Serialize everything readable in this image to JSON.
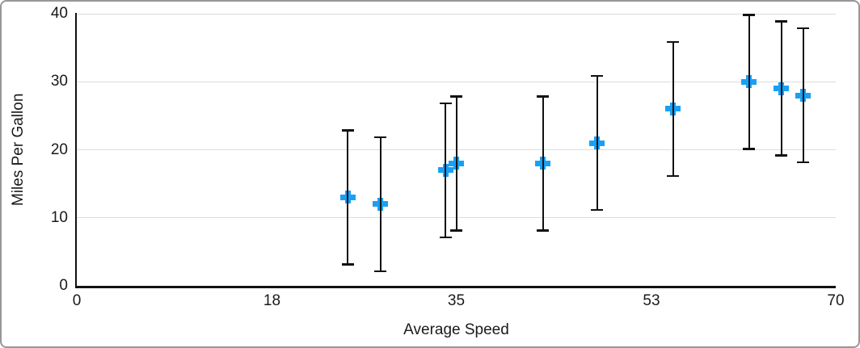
{
  "chart_data": {
    "type": "scatter",
    "title": "",
    "xlabel": "Average Speed",
    "ylabel": "Miles Per Gallon",
    "xlim": [
      0,
      70
    ],
    "ylim": [
      0,
      40
    ],
    "x_ticks": [
      0,
      18,
      35,
      53,
      70
    ],
    "y_ticks": [
      0,
      10,
      20,
      30,
      40
    ],
    "grid": "horizontal-only",
    "legend": "none",
    "marker_style": "plus",
    "error_bars": "vertical, symmetric, with caps",
    "series": [
      {
        "name": "Miles Per Gallon",
        "points": [
          {
            "x": 25,
            "y": 13,
            "err_plus": 10,
            "err_minus": 10
          },
          {
            "x": 28,
            "y": 12,
            "err_plus": 10,
            "err_minus": 10
          },
          {
            "x": 34,
            "y": 17,
            "err_plus": 10,
            "err_minus": 10
          },
          {
            "x": 35,
            "y": 18,
            "err_plus": 10,
            "err_minus": 10
          },
          {
            "x": 43,
            "y": 18,
            "err_plus": 10,
            "err_minus": 10
          },
          {
            "x": 48,
            "y": 21,
            "err_plus": 10,
            "err_minus": 10
          },
          {
            "x": 55,
            "y": 26,
            "err_plus": 10,
            "err_minus": 10
          },
          {
            "x": 62,
            "y": 30,
            "err_plus": 10,
            "err_minus": 10
          },
          {
            "x": 65,
            "y": 29,
            "err_plus": 10,
            "err_minus": 10
          },
          {
            "x": 67,
            "y": 28,
            "err_plus": 10,
            "err_minus": 10
          }
        ]
      }
    ]
  },
  "colors": {
    "marker": "#18a0f5",
    "error_bar": "#111111",
    "axis": "#111111",
    "gridline": "#dcdcdc",
    "text": "#1a1a1a",
    "background": "#ffffff",
    "frame_border": "#979797"
  }
}
